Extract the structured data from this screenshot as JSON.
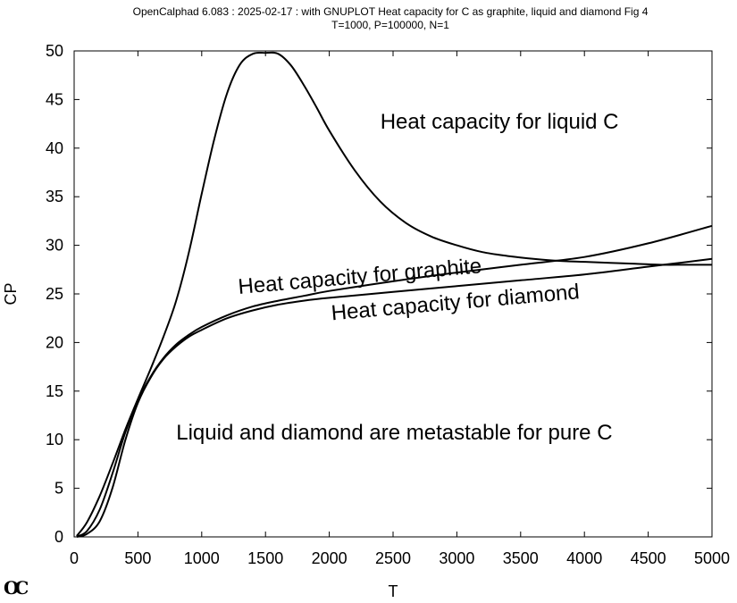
{
  "header": {
    "line1": "OpenCalphad   6.083 :  2025-02-17 : with GNUPLOT Heat capacity for C as graphite, liquid and diamond Fig 4",
    "line2": "T=1000, P=100000, N=1"
  },
  "logo": "OC",
  "chart_data": {
    "type": "line",
    "xlabel": "T",
    "ylabel": "CP",
    "xlim": [
      0,
      5000
    ],
    "ylim": [
      0,
      50
    ],
    "xticks": [
      0,
      500,
      1000,
      1500,
      2000,
      2500,
      3000,
      3500,
      4000,
      4500,
      5000
    ],
    "yticks": [
      0,
      5,
      10,
      15,
      20,
      25,
      30,
      35,
      40,
      45,
      50
    ],
    "grid": false,
    "legend": "none",
    "series": [
      {
        "key": "liquid",
        "x": [
          20,
          100,
          200,
          300,
          400,
          500,
          600,
          700,
          800,
          900,
          1000,
          1100,
          1200,
          1300,
          1400,
          1500,
          1600,
          1700,
          1800,
          1900,
          2000,
          2200,
          2400,
          2600,
          2800,
          3000,
          3200,
          3400,
          3600,
          3800,
          4000,
          4200,
          4400,
          4600,
          4800,
          5000
        ],
        "y": [
          0.1,
          1.5,
          4.2,
          7.5,
          11.0,
          14.2,
          17.3,
          20.6,
          24.3,
          29.3,
          35.3,
          41.0,
          45.7,
          48.6,
          49.7,
          49.8,
          49.7,
          48.5,
          46.5,
          44.2,
          41.8,
          37.7,
          34.5,
          32.3,
          30.9,
          30.0,
          29.3,
          28.9,
          28.6,
          28.4,
          28.3,
          28.2,
          28.1,
          28.0,
          28.0,
          28.0
        ]
      },
      {
        "key": "graphite",
        "x": [
          20,
          100,
          200,
          300,
          400,
          500,
          600,
          700,
          800,
          900,
          1000,
          1200,
          1400,
          1600,
          1800,
          2000,
          2500,
          3000,
          3500,
          4000,
          4500,
          5000
        ],
        "y": [
          0.05,
          0.6,
          2.8,
          6.5,
          10.7,
          14.0,
          16.5,
          18.4,
          19.8,
          20.8,
          21.6,
          22.8,
          23.7,
          24.3,
          24.8,
          25.3,
          26.3,
          27.2,
          28.0,
          28.8,
          30.2,
          32.0
        ]
      },
      {
        "key": "diamond",
        "x": [
          20,
          100,
          200,
          300,
          400,
          500,
          600,
          700,
          800,
          900,
          1000,
          1200,
          1400,
          1600,
          1800,
          2000,
          2500,
          3000,
          3500,
          4000,
          4500,
          5000
        ],
        "y": [
          0.0,
          0.3,
          1.6,
          5.0,
          9.9,
          13.8,
          16.4,
          18.3,
          19.6,
          20.6,
          21.3,
          22.5,
          23.3,
          23.9,
          24.3,
          24.6,
          25.2,
          25.8,
          26.4,
          27.0,
          27.8,
          28.6
        ]
      }
    ],
    "annotations": [
      {
        "text": "Heat capacity for liquid C",
        "x": 2400,
        "y": 42,
        "rotate": 0
      },
      {
        "text": "Heat capacity for graphite",
        "x": 1290,
        "y": 25.0,
        "rotate": -5
      },
      {
        "text": "Heat capacity for diamond",
        "x": 2020,
        "y": 22.3,
        "rotate": -5
      },
      {
        "text": "Liquid and diamond are metastable for pure C",
        "x": 800,
        "y": 10,
        "rotate": 0
      }
    ]
  }
}
